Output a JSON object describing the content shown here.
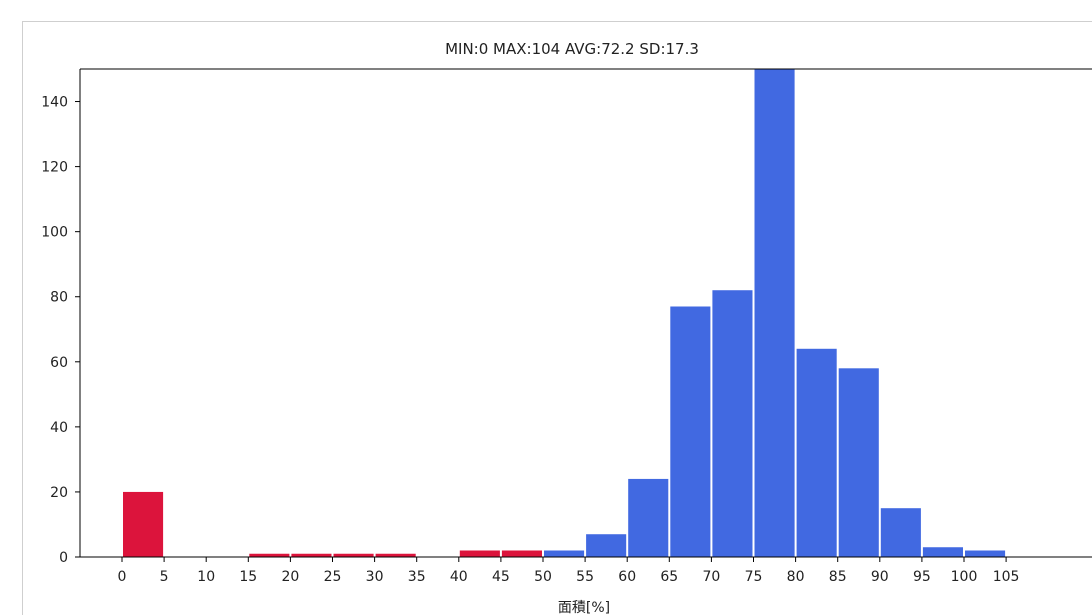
{
  "chart_data": {
    "type": "bar",
    "title": "MIN:0 MAX:104 AVG:72.2 SD:17.3",
    "xlabel": "面積[%]",
    "ylabel": "",
    "ylim": [
      0,
      150
    ],
    "yticks": [
      "0",
      "20",
      "40",
      "60",
      "80",
      "100",
      "120",
      "140"
    ],
    "xticks": [
      "0",
      "5",
      "10",
      "15",
      "20",
      "25",
      "30",
      "35",
      "40",
      "45",
      "50",
      "55",
      "60",
      "65",
      "70",
      "75",
      "80",
      "85",
      "90",
      "95",
      "100",
      "105"
    ],
    "bin_width": 5,
    "bins": [
      {
        "start": 0,
        "value": 20,
        "color": "#dc143c"
      },
      {
        "start": 5,
        "value": 0,
        "color": "#dc143c"
      },
      {
        "start": 10,
        "value": 0,
        "color": "#dc143c"
      },
      {
        "start": 15,
        "value": 1,
        "color": "#dc143c"
      },
      {
        "start": 20,
        "value": 1,
        "color": "#dc143c"
      },
      {
        "start": 25,
        "value": 1,
        "color": "#dc143c"
      },
      {
        "start": 30,
        "value": 1,
        "color": "#dc143c"
      },
      {
        "start": 35,
        "value": 0,
        "color": "#dc143c"
      },
      {
        "start": 40,
        "value": 2,
        "color": "#dc143c"
      },
      {
        "start": 45,
        "value": 2,
        "color": "#dc143c"
      },
      {
        "start": 50,
        "value": 2,
        "color": "#4169e1"
      },
      {
        "start": 55,
        "value": 7,
        "color": "#4169e1"
      },
      {
        "start": 60,
        "value": 24,
        "color": "#4169e1"
      },
      {
        "start": 65,
        "value": 77,
        "color": "#4169e1"
      },
      {
        "start": 70,
        "value": 82,
        "color": "#4169e1"
      },
      {
        "start": 75,
        "value": 150,
        "color": "#4169e1"
      },
      {
        "start": 80,
        "value": 64,
        "color": "#4169e1"
      },
      {
        "start": 85,
        "value": 58,
        "color": "#4169e1"
      },
      {
        "start": 90,
        "value": 15,
        "color": "#4169e1"
      },
      {
        "start": 95,
        "value": 3,
        "color": "#4169e1"
      },
      {
        "start": 100,
        "value": 2,
        "color": "#4169e1"
      }
    ]
  }
}
